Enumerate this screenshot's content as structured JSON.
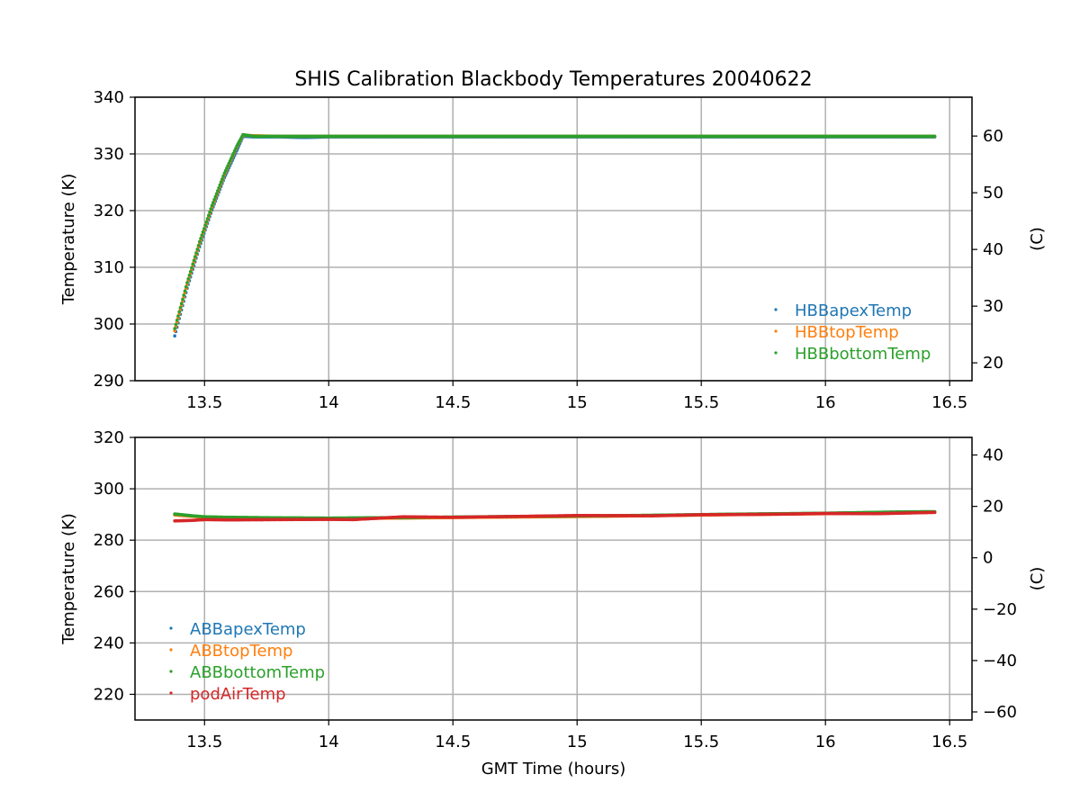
{
  "figure": {
    "title": "SHIS Calibration Blackbody Temperatures 20040622",
    "xlabel": "GMT Time (hours)"
  },
  "chart_data": [
    {
      "type": "scatter",
      "ylabel": "Temperature (K)",
      "y2label": "(C)",
      "xlim": [
        13.22,
        16.59
      ],
      "ylim": [
        290,
        340
      ],
      "xticks": [
        13.5,
        14.0,
        14.5,
        15.0,
        15.5,
        16.0,
        16.5
      ],
      "yticks": [
        290,
        300,
        310,
        320,
        330,
        340
      ],
      "y2ticks": [
        20,
        30,
        40,
        50,
        60
      ],
      "grid": true,
      "legend_position": "lower-right",
      "series": [
        {
          "name": "HBBapexTemp",
          "color": "#1f77b4",
          "x": [
            13.38,
            13.43,
            13.48,
            13.53,
            13.58,
            13.63,
            13.655,
            13.7,
            13.8,
            13.9,
            14.0,
            14.5,
            15.0,
            15.5,
            16.0,
            16.44
          ],
          "y": [
            297.9,
            306.3,
            313.6,
            320.1,
            325.8,
            330.6,
            333.1,
            333.0,
            333.0,
            332.9,
            333.0,
            333.0,
            333.0,
            333.0,
            333.0,
            333.0
          ]
        },
        {
          "name": "HBBtopTemp",
          "color": "#ff7f0e",
          "x": [
            13.38,
            13.43,
            13.48,
            13.53,
            13.58,
            13.63,
            13.655,
            13.7,
            13.8,
            14.0,
            14.5,
            15.0,
            15.5,
            16.0,
            16.44
          ],
          "y": [
            298.8,
            307.0,
            314.2,
            320.6,
            326.3,
            331.2,
            333.3,
            333.2,
            333.1,
            333.1,
            333.1,
            333.1,
            333.1,
            333.1,
            333.1
          ]
        },
        {
          "name": "HBBbottomTemp",
          "color": "#2ca02c",
          "x": [
            13.38,
            13.43,
            13.48,
            13.53,
            13.58,
            13.63,
            13.655,
            13.7,
            13.8,
            14.0,
            14.5,
            15.0,
            15.5,
            16.0,
            16.44
          ],
          "y": [
            299.2,
            307.3,
            314.5,
            320.9,
            326.6,
            331.4,
            333.4,
            333.1,
            333.1,
            333.1,
            333.1,
            333.1,
            333.1,
            333.1,
            333.1
          ]
        }
      ]
    },
    {
      "type": "scatter",
      "ylabel": "Temperature (K)",
      "y2label": "(C)",
      "xlim": [
        13.22,
        16.59
      ],
      "ylim": [
        210,
        320
      ],
      "xticks": [
        13.5,
        14.0,
        14.5,
        15.0,
        15.5,
        16.0,
        16.5
      ],
      "yticks": [
        220,
        240,
        260,
        280,
        300,
        320
      ],
      "y2ticks": [
        -60,
        -40,
        -20,
        0,
        20,
        40
      ],
      "grid": true,
      "legend_position": "lower-left",
      "series": [
        {
          "name": "ABBapexTemp",
          "color": "#1f77b4",
          "x": [
            13.38,
            13.45,
            13.5,
            13.6,
            13.8,
            14.0,
            14.3,
            14.6,
            15.0,
            15.3,
            15.6,
            16.0,
            16.3,
            16.44
          ],
          "y": [
            290.0,
            289.4,
            289.0,
            288.8,
            288.6,
            288.5,
            288.7,
            289.0,
            289.3,
            289.6,
            290.0,
            290.4,
            290.9,
            291.0
          ]
        },
        {
          "name": "ABBtopTemp",
          "color": "#ff7f0e",
          "x": [
            13.38,
            13.45,
            13.5,
            13.6,
            13.8,
            14.0,
            14.3,
            14.6,
            15.0,
            15.3,
            15.6,
            16.0,
            16.3,
            16.44
          ],
          "y": [
            289.8,
            289.3,
            288.9,
            288.7,
            288.5,
            288.4,
            288.6,
            288.9,
            289.2,
            289.5,
            289.9,
            290.3,
            290.8,
            290.9
          ]
        },
        {
          "name": "ABBbottomTemp",
          "color": "#2ca02c",
          "x": [
            13.38,
            13.45,
            13.5,
            13.6,
            13.8,
            14.0,
            14.3,
            14.6,
            15.0,
            15.3,
            15.6,
            16.0,
            16.3,
            16.44
          ],
          "y": [
            290.2,
            289.5,
            289.1,
            288.9,
            288.7,
            288.6,
            288.8,
            289.1,
            289.4,
            289.7,
            290.1,
            290.5,
            291.0,
            291.1
          ]
        },
        {
          "name": "podAirTemp",
          "color": "#d62728",
          "x": [
            13.38,
            13.45,
            13.5,
            13.6,
            13.8,
            14.0,
            14.1,
            14.3,
            14.5,
            14.8,
            15.0,
            15.3,
            15.5,
            15.8,
            16.0,
            16.2,
            16.44
          ],
          "y": [
            287.5,
            287.7,
            288.0,
            287.9,
            288.0,
            288.1,
            288.0,
            289.1,
            288.9,
            289.3,
            289.6,
            289.5,
            289.9,
            290.1,
            290.4,
            290.3,
            290.8
          ]
        }
      ]
    }
  ]
}
